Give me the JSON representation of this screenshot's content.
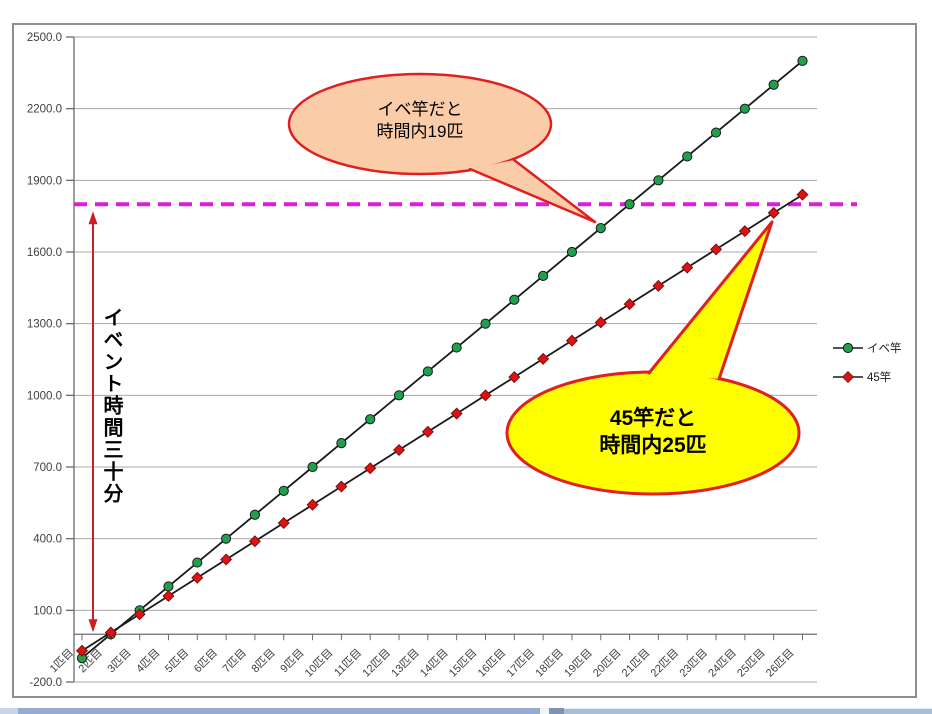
{
  "colors": {
    "gridline": "#A8A8A8",
    "axis": "#6B6B6B",
    "tick_label": "#3F3F3F",
    "series_line": "#1A1A1A",
    "frame_border": "#8F8F8F",
    "scrollbar_track": "#A9BDD8",
    "scrollbar_thumb": "#93ACD0",
    "scrollbar_button": "#C8D5E8",
    "scrollbar_divider": "#7E94B4"
  },
  "chart_data": {
    "type": "line",
    "title": "",
    "xlabel": "",
    "ylabel": "",
    "ylim": [
      -200,
      2500
    ],
    "ytick_interval": 300,
    "ytick_labels": [
      "2500.0",
      "2200.0",
      "1900.0",
      "1600.0",
      "1300.0",
      "1000.0",
      "700.0",
      "400.0",
      "100.0",
      "-200.0"
    ],
    "grid": true,
    "legend_position": "right",
    "categories": [
      "1匹目",
      "2匹目",
      "3匹目",
      "4匹目",
      "5匹目",
      "6匹目",
      "7匹目",
      "8匹目",
      "9匹目",
      "10匹目",
      "11匹目",
      "12匹目",
      "13匹目",
      "14匹目",
      "15匹目",
      "16匹目",
      "17匹目",
      "18匹目",
      "19匹目",
      "20匹目",
      "21匹目",
      "22匹目",
      "23匹目",
      "24匹目",
      "25匹目",
      "26匹目"
    ],
    "series": [
      {
        "name": "イベ竿",
        "marker": "circle",
        "color": "#21A04B",
        "values": [
          -100,
          0,
          100,
          200,
          300,
          400,
          500,
          600,
          700,
          800,
          900,
          1000,
          1100,
          1200,
          1300,
          1400,
          1500,
          1600,
          1700,
          1800,
          1900,
          2000,
          2100,
          2200,
          2300,
          2400
        ]
      },
      {
        "name": "45竿",
        "marker": "diamond",
        "color": "#E01111",
        "values": [
          -69.0,
          7.4,
          83.7,
          160.1,
          236.4,
          312.8,
          389.2,
          465.5,
          541.9,
          618.2,
          694.6,
          771.0,
          847.3,
          923.7,
          1000.0,
          1076.4,
          1152.8,
          1229.1,
          1305.5,
          1381.8,
          1458.2,
          1534.6,
          1610.9,
          1687.3,
          1763.6,
          1840.0
        ]
      }
    ],
    "annotations": {
      "time_limit_line": {
        "y_value": 1800,
        "style": "dashed",
        "color": "#DA1FDA"
      },
      "time_arrow": {
        "from_value": 0,
        "to_value": 1800,
        "color": "#CC2020"
      },
      "time_arrow_label": "イベント時間三十分",
      "callout_ibe": {
        "line1": "イベ竿だと",
        "line2": "時間内19匹",
        "fill": "#FACDA8",
        "border": "#E02020"
      },
      "callout_45": {
        "line1": "45竿だと",
        "line2": "時間内25匹",
        "fill": "#FFFF00",
        "border": "#E02020"
      }
    }
  }
}
